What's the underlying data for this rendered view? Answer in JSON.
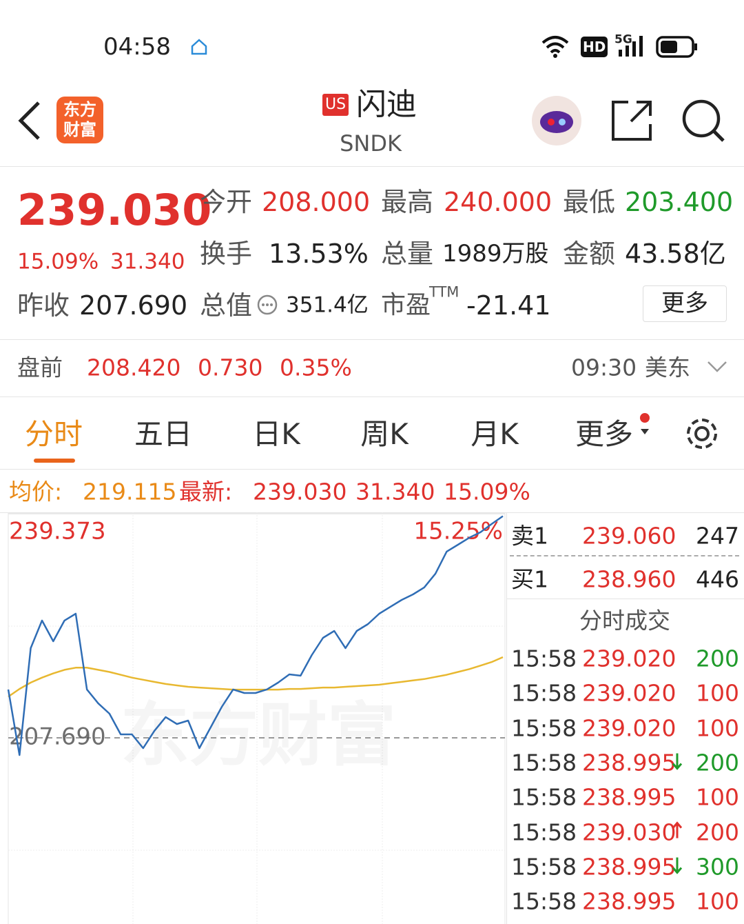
{
  "status_bar": {
    "time": "04:58",
    "hd": "HD",
    "network": "5G"
  },
  "header": {
    "logo": [
      "东方",
      "财富"
    ],
    "market_badge": "US",
    "name": "闪迪",
    "ticker": "SNDK"
  },
  "quote": {
    "price": "239.030",
    "change_pct": "15.09%",
    "change": "31.340",
    "prev_close_label": "昨收",
    "prev_close": "207.690",
    "fields": [
      {
        "label": "今开",
        "value": "208.000"
      },
      {
        "label": "最高",
        "value": "240.000"
      },
      {
        "label": "最低",
        "value": "203.400"
      },
      {
        "label": "换手",
        "value": "13.53%"
      },
      {
        "label": "总量",
        "value": "1989万股"
      },
      {
        "label": "金额",
        "value": "43.58亿"
      },
      {
        "label": "总值",
        "value": "351.4亿"
      },
      {
        "label": "市盈",
        "superscript": "TTM",
        "value": "-21.41"
      }
    ],
    "more_button": "更多"
  },
  "premarket": {
    "label": "盘前",
    "price": "208.420",
    "change": "0.730",
    "change_pct": "0.35%",
    "time": "09:30",
    "timezone": "美东"
  },
  "tabs": [
    "分时",
    "五日",
    "日K",
    "周K",
    "月K",
    "更多"
  ],
  "info": {
    "avg_label": "均价:",
    "avg": "219.115",
    "latest_label": "最新:",
    "latest": "239.030",
    "change": "31.340",
    "change_pct": "15.09%"
  },
  "chart_data": {
    "type": "line",
    "watermark": "东方财富",
    "ylim": [
      176.007,
      239.373
    ],
    "yticks": [
      {
        "value": 207.69,
        "label": "207.690"
      },
      239.373
    ],
    "y2lim": [
      -15.25,
      15.25
    ],
    "y2ticks": [
      {
        "value": 15.25,
        "label": "15.25%"
      }
    ],
    "series": [
      {
        "color": "#2f6db5",
        "values": [
          214.52,
          205.25,
          220.37,
          224.27,
          221.34,
          224.27,
          225.24,
          214.52,
          212.57,
          211.1,
          208.18,
          208.18,
          206.23,
          208.67,
          210.62,
          209.64,
          210.13,
          206.23,
          209.15,
          212.08,
          214.52,
          214.03,
          214.03,
          214.52,
          215.49,
          216.66,
          216.47,
          219.39,
          221.83,
          222.8,
          220.37,
          222.8,
          223.78,
          225.24,
          226.22,
          227.19,
          227.97,
          228.95,
          230.9,
          234.02,
          234.99,
          235.97,
          236.75,
          237.92,
          239.03
        ]
      },
      {
        "color": "#e8b830",
        "values": [
          213.5,
          214.6,
          215.5,
          216.2,
          216.8,
          217.3,
          217.6,
          217.6,
          217.3,
          217.0,
          216.6,
          216.2,
          215.9,
          215.6,
          215.3,
          215.1,
          214.9,
          214.8,
          214.7,
          214.6,
          214.5,
          214.5,
          214.5,
          214.5,
          214.5,
          214.6,
          214.6,
          214.7,
          214.8,
          214.8,
          214.9,
          215.0,
          215.1,
          215.2,
          215.4,
          215.6,
          215.8,
          216.0,
          216.3,
          216.6,
          217.0,
          217.4,
          217.9,
          218.4,
          219.1
        ]
      }
    ]
  },
  "order_book": {
    "ask": {
      "label": "卖1",
      "price": "239.060",
      "volume": "247"
    },
    "bid": {
      "label": "买1",
      "price": "238.960",
      "volume": "446"
    }
  },
  "trades": {
    "title": "分时成交",
    "rows": [
      {
        "time": "15:58",
        "price": "239.020",
        "volume": "200",
        "color": "green"
      },
      {
        "time": "15:58",
        "price": "239.020",
        "volume": "100",
        "color": "red"
      },
      {
        "time": "15:58",
        "price": "239.020",
        "volume": "100",
        "color": "red"
      },
      {
        "time": "15:58",
        "price": "238.995",
        "arrow": "down",
        "volume": "200",
        "color": "green"
      },
      {
        "time": "15:58",
        "price": "238.995",
        "volume": "100",
        "color": "red"
      },
      {
        "time": "15:58",
        "price": "239.030",
        "arrow": "up",
        "volume": "200",
        "color": "red"
      },
      {
        "time": "15:58",
        "price": "238.995",
        "arrow": "down",
        "volume": "300",
        "color": "green"
      },
      {
        "time": "15:58",
        "price": "238.995",
        "volume": "100",
        "color": "red"
      }
    ]
  }
}
